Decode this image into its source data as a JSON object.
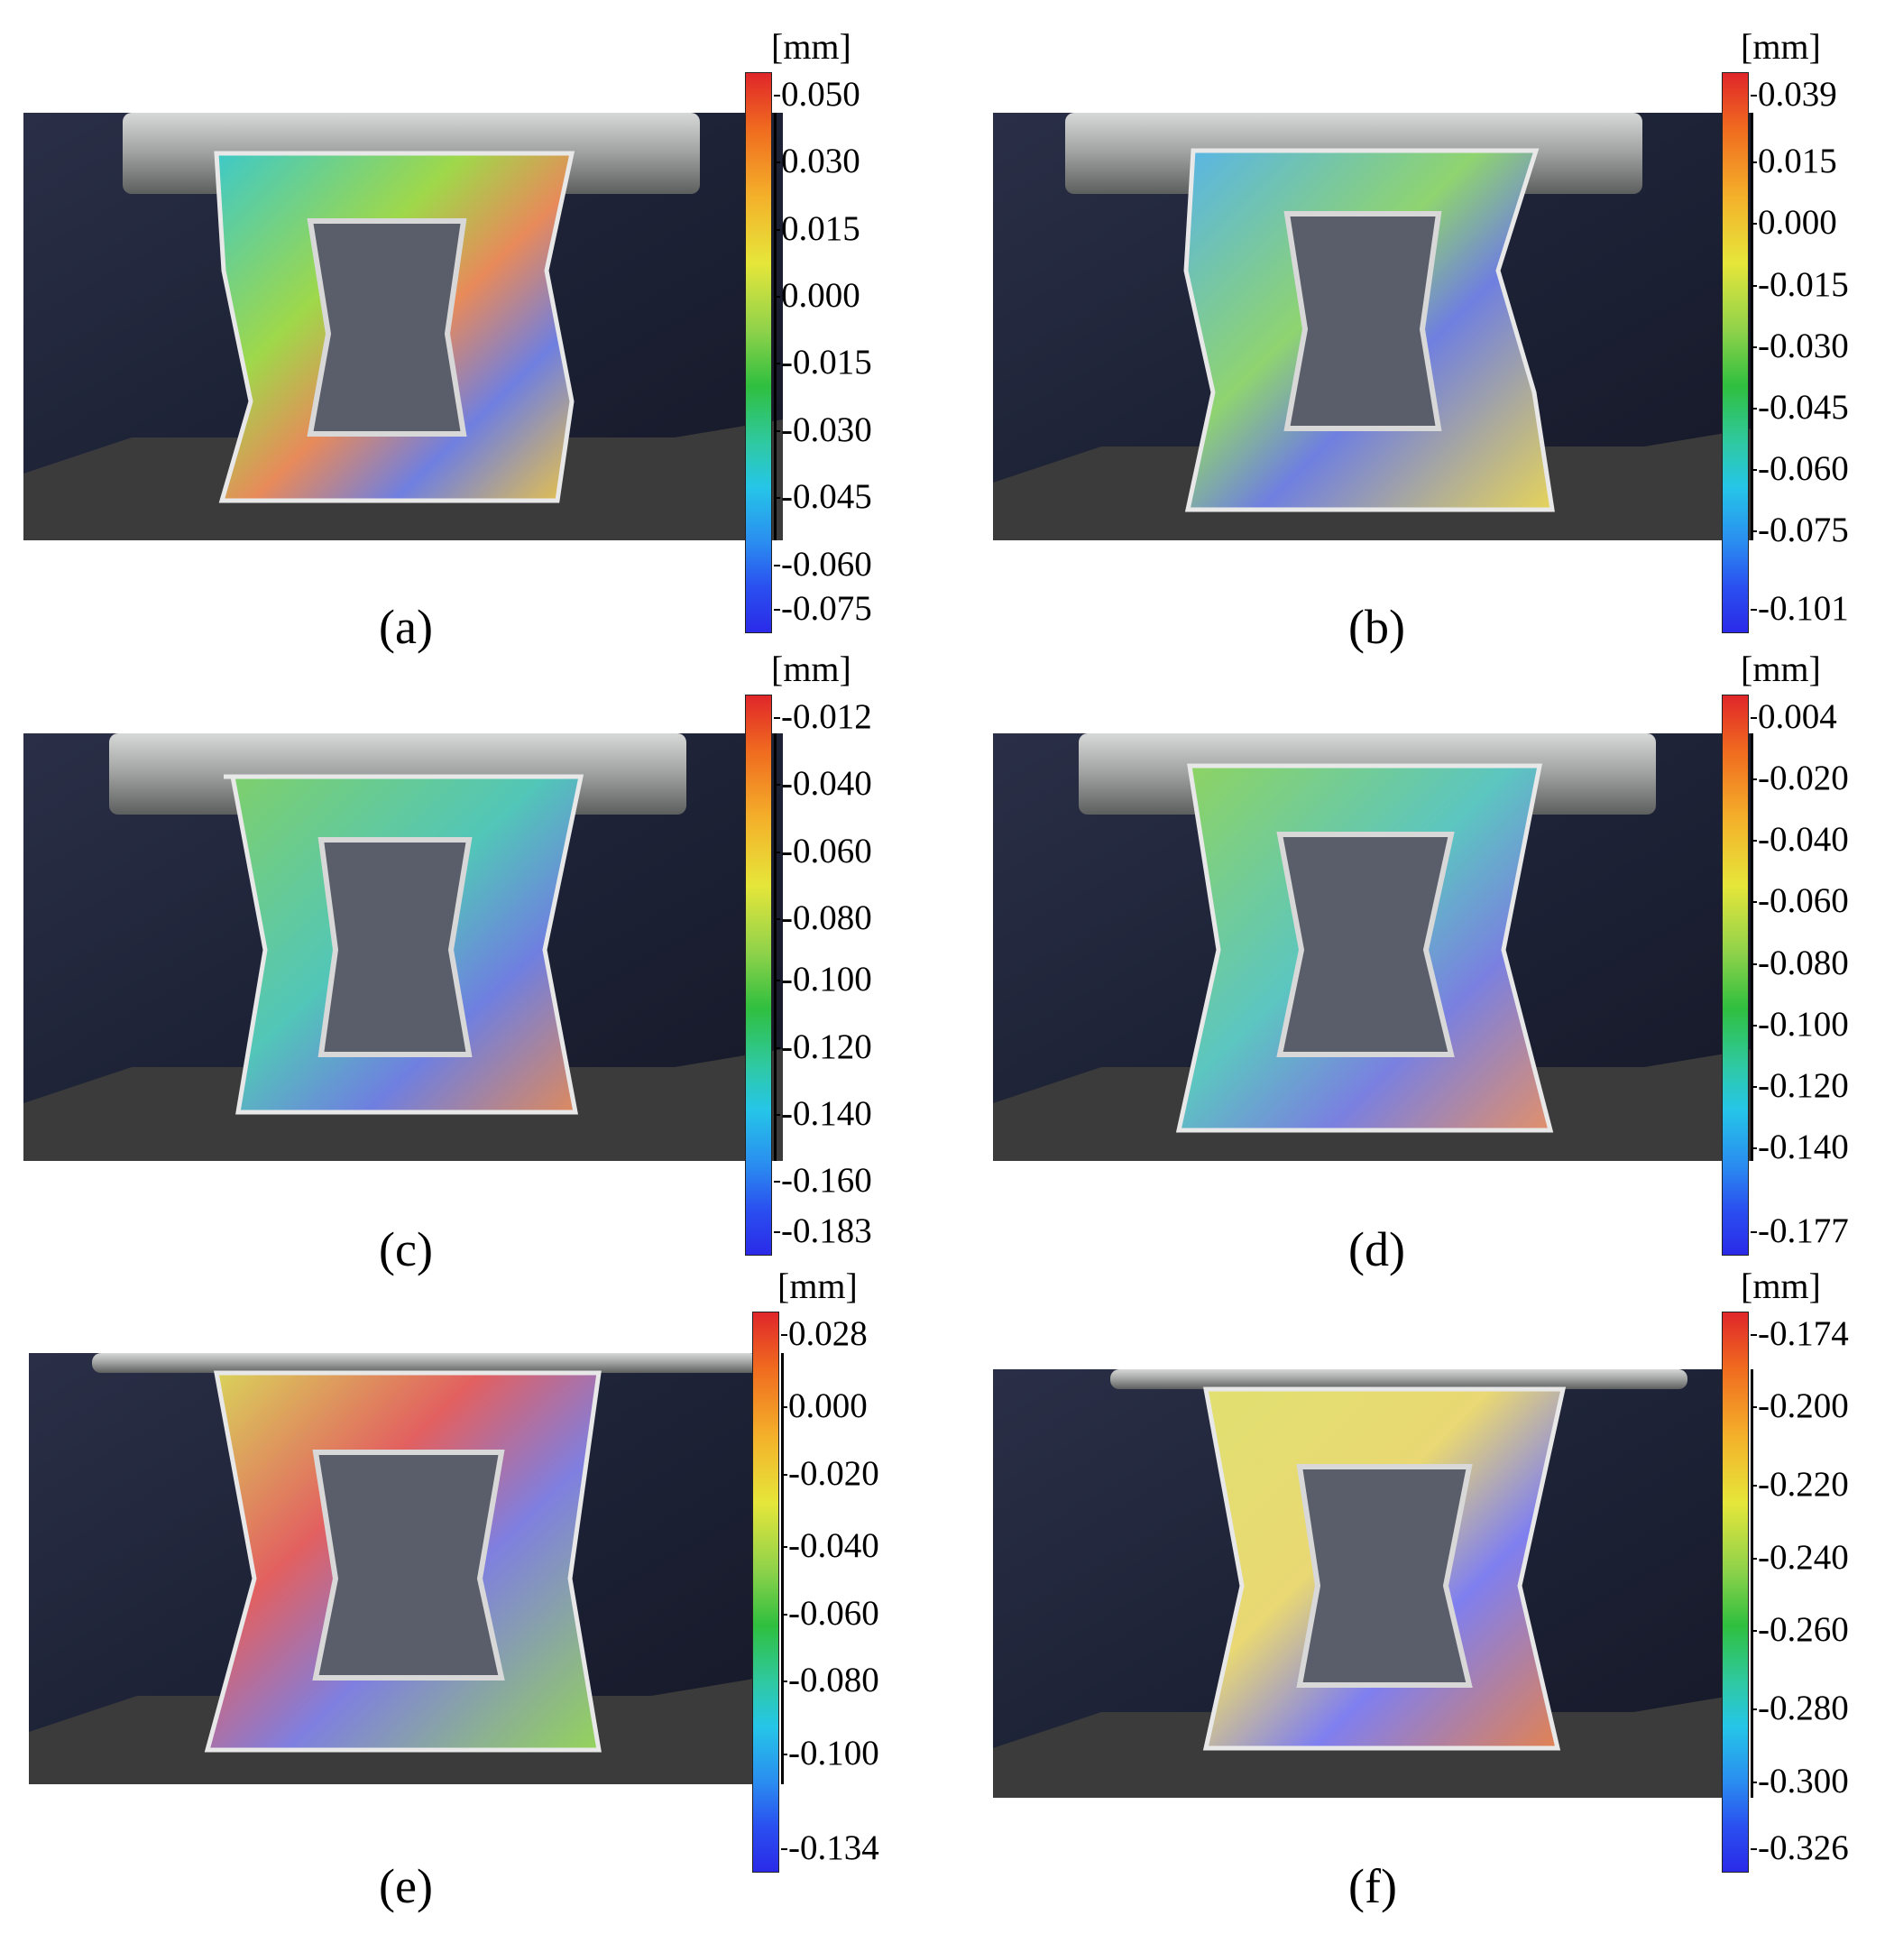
{
  "panels": [
    {
      "id": "a",
      "caption": "(a)",
      "unit": "[mm]",
      "ticks": [
        "0.050",
        "0.030",
        "0.015",
        "0.000",
        "-0.015",
        "-0.030",
        "-0.045",
        "-0.060",
        "-0.075"
      ]
    },
    {
      "id": "b",
      "caption": "(b)",
      "unit": "[mm]",
      "ticks": [
        "0.039",
        "0.015",
        "0.000",
        "-0.015",
        "-0.030",
        "-0.045",
        "-0.060",
        "-0.075",
        "-0.101"
      ]
    },
    {
      "id": "c",
      "caption": "(c)",
      "unit": "[mm]",
      "ticks": [
        "-0.012",
        "-0.040",
        "-0.060",
        "-0.080",
        "-0.100",
        "-0.120",
        "-0.140",
        "-0.160",
        "-0.183"
      ]
    },
    {
      "id": "d",
      "caption": "(d)",
      "unit": "[mm]",
      "ticks": [
        "0.004",
        "-0.020",
        "-0.040",
        "-0.060",
        "-0.080",
        "-0.100",
        "-0.120",
        "-0.140",
        "-0.177"
      ]
    },
    {
      "id": "e",
      "caption": "(e)",
      "unit": "[mm]",
      "ticks": [
        "0.028",
        "0.000",
        "-0.020",
        "-0.040",
        "-0.060",
        "-0.080",
        "-0.100",
        "-0.134"
      ]
    },
    {
      "id": "f",
      "caption": "(f)",
      "unit": "[mm]",
      "ticks": [
        "-0.174",
        "-0.200",
        "-0.220",
        "-0.240",
        "-0.260",
        "-0.280",
        "-0.300",
        "-0.326"
      ]
    }
  ]
}
